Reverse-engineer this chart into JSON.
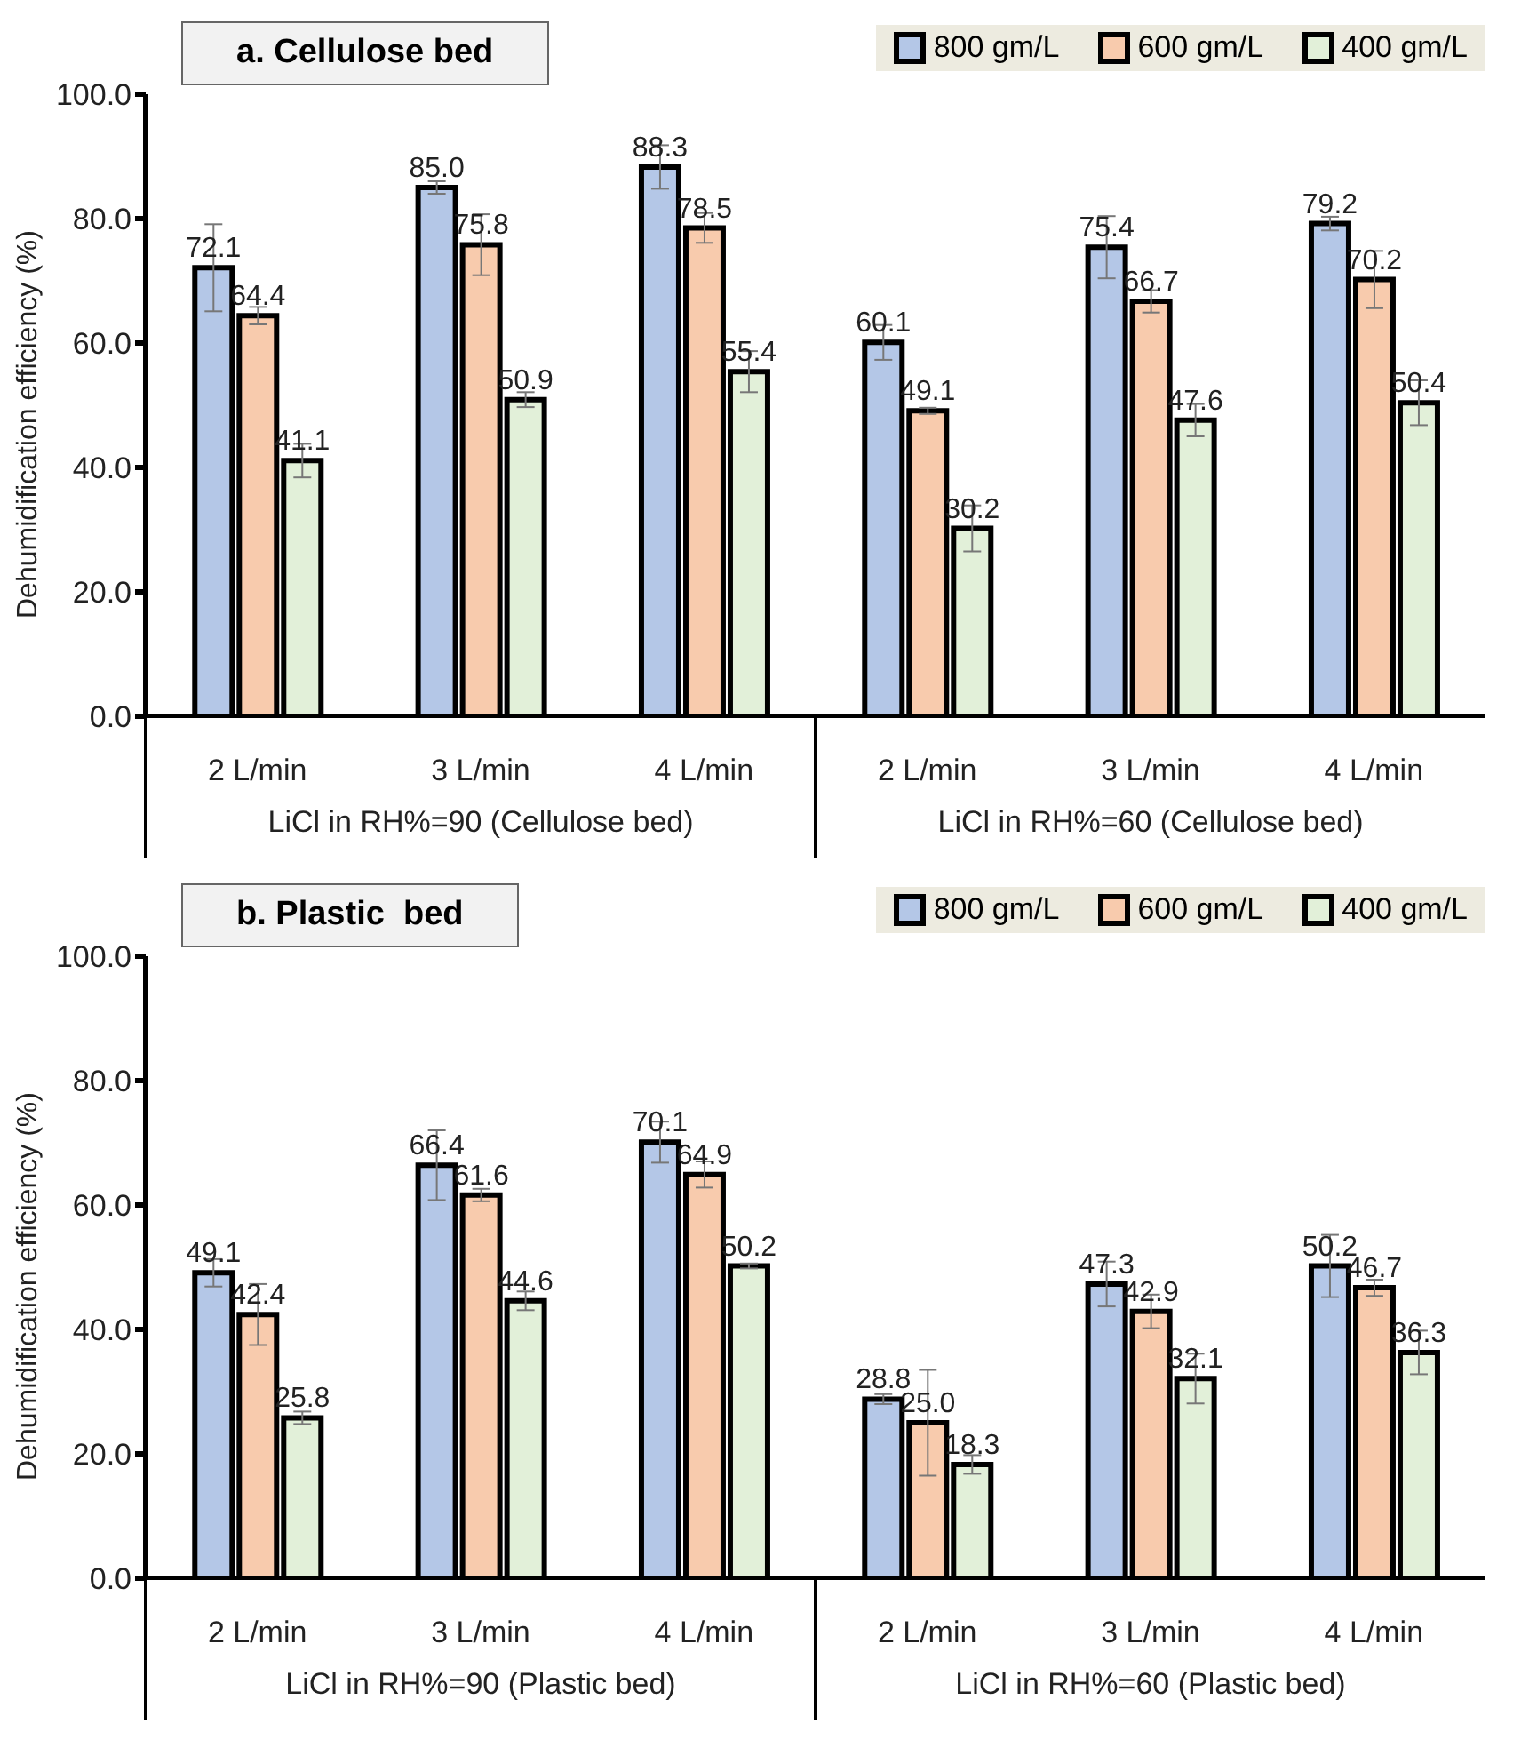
{
  "chart_data": [
    {
      "type": "bar",
      "title": "a. Cellulose bed",
      "ylabel": "Dehumidification efficiency (%)",
      "categories": [
        "2 L/min",
        "3 L/min",
        "4 L/min",
        "2 L/min",
        "3 L/min",
        "4 L/min"
      ],
      "annotations": [
        "LiCl in RH%=90 (Cellulose bed)",
        "LiCl in RH%=60 (Cellulose bed)"
      ],
      "ylim": [
        0,
        100
      ],
      "yticks": [
        {
          "value": 0,
          "label": "0.0"
        },
        {
          "value": 20,
          "label": "20.0"
        },
        {
          "value": 40,
          "label": "40.0"
        },
        {
          "value": 60,
          "label": "60.0"
        },
        {
          "value": 80,
          "label": "80.0"
        },
        {
          "value": 100,
          "label": "100.0"
        }
      ],
      "grid": false,
      "legend": "top right",
      "series": [
        {
          "name": "800 gm/L",
          "color": "#b4c7e7",
          "values": [
            72.1,
            85.0,
            88.3,
            60.1,
            75.4,
            79.2
          ],
          "errors": [
            7,
            1,
            3.5,
            2.8,
            5,
            1.1
          ],
          "value_labels": [
            "72.1",
            "85.0",
            "88.3",
            "60.1",
            "75.4",
            "79.2"
          ]
        },
        {
          "name": "600 gm/L",
          "color": "#f8cbad",
          "values": [
            64.4,
            75.8,
            78.5,
            49.1,
            66.7,
            70.2
          ],
          "errors": [
            1.4,
            4.9,
            2.4,
            0.5,
            1.8,
            4.6
          ],
          "value_labels": [
            "64.4",
            "75.8",
            "78.5",
            "49.1",
            "66.7",
            "70.2"
          ]
        },
        {
          "name": "400 gm/L",
          "color": "#e2f0d9",
          "values": [
            41.1,
            50.9,
            55.4,
            30.2,
            47.6,
            50.4
          ],
          "errors": [
            2.7,
            1.2,
            3.3,
            3.7,
            2.6,
            3.6
          ],
          "value_labels": [
            "41.1",
            "50.9",
            "55.4",
            "30.2",
            "47.6",
            "50.4"
          ]
        }
      ]
    },
    {
      "type": "bar",
      "title": "b. Plastic  bed",
      "ylabel": "Dehumidification efficiency (%)",
      "categories": [
        "2 L/min",
        "3 L/min",
        "4 L/min",
        "2 L/min",
        "3 L/min",
        "4 L/min"
      ],
      "annotations": [
        "LiCl in RH%=90 (Plastic bed)",
        "LiCl in RH%=60 (Plastic bed)"
      ],
      "ylim": [
        0,
        100
      ],
      "yticks": [
        {
          "value": 0,
          "label": "0.0"
        },
        {
          "value": 20,
          "label": "20.0"
        },
        {
          "value": 40,
          "label": "40.0"
        },
        {
          "value": 60,
          "label": "60.0"
        },
        {
          "value": 80,
          "label": "80.0"
        },
        {
          "value": 100,
          "label": "100.0"
        }
      ],
      "grid": false,
      "legend": "top right",
      "series": [
        {
          "name": "800 gm/L",
          "color": "#b4c7e7",
          "values": [
            49.1,
            66.4,
            70.1,
            28.8,
            47.3,
            50.2
          ],
          "errors": [
            2.2,
            5.6,
            3.3,
            0.8,
            3.6,
            5
          ],
          "value_labels": [
            "49.1",
            "66.4",
            "70.1",
            "28.8",
            "47.3",
            "50.2"
          ]
        },
        {
          "name": "600 gm/L",
          "color": "#f8cbad",
          "values": [
            42.4,
            61.6,
            64.9,
            25.0,
            42.9,
            46.7
          ],
          "errors": [
            4.9,
            1,
            2.1,
            8.5,
            2.7,
            1.3
          ],
          "value_labels": [
            "42.4",
            "61.6",
            "64.9",
            "25.0",
            "42.9",
            "46.7"
          ]
        },
        {
          "name": "400 gm/L",
          "color": "#e2f0d9",
          "values": [
            25.8,
            44.6,
            50.2,
            18.3,
            32.1,
            36.3
          ],
          "errors": [
            1,
            1.5,
            0.4,
            1.5,
            4,
            3.5
          ],
          "value_labels": [
            "25.8",
            "44.6",
            "50.2",
            "18.3",
            "32.1",
            "36.3"
          ]
        }
      ]
    }
  ]
}
